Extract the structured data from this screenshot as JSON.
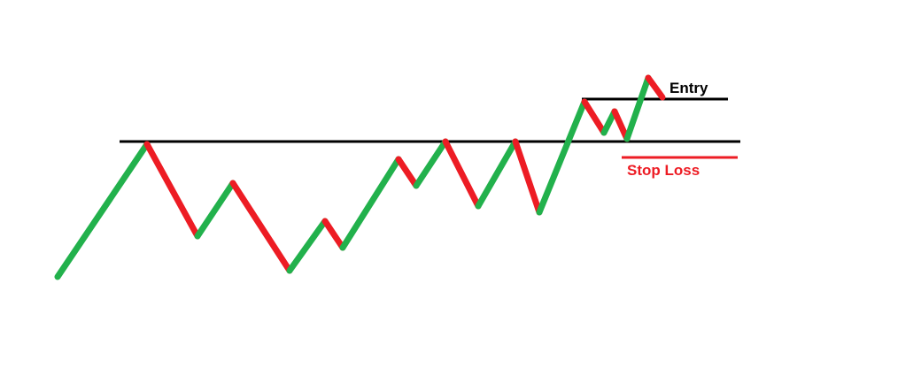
{
  "labels": {
    "entry": "Entry",
    "stop_loss": "Stop Loss"
  },
  "colors": {
    "up_leg": "#22b14c",
    "down_leg": "#ed1c24",
    "level_line": "#000000",
    "stop_loss": "#ed1c24",
    "entry_text": "#000000"
  },
  "price_path": {
    "legs": [
      "up",
      "down",
      "up",
      "down",
      "up",
      "down",
      "up",
      "down",
      "up",
      "down",
      "up",
      "down",
      "up",
      "down",
      "up",
      "down",
      "up",
      "down"
    ]
  }
}
